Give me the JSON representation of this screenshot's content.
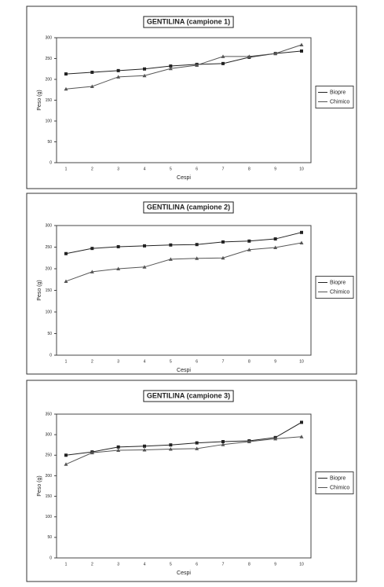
{
  "chart_data": [
    {
      "type": "line",
      "title": "GENTILINA (campione 1)",
      "xlabel": "Cespi",
      "ylabel": "Peso (g)",
      "categories": [
        "1",
        "2",
        "3",
        "4",
        "5",
        "6",
        "7",
        "8",
        "9",
        "10"
      ],
      "ylim": [
        0,
        300
      ],
      "yticks": [
        0,
        50,
        100,
        150,
        200,
        250,
        300
      ],
      "series": [
        {
          "name": "Biopre",
          "color": "#222222",
          "values": [
            213,
            217,
            221,
            225,
            232,
            236,
            238,
            253,
            262,
            268
          ]
        },
        {
          "name": "Chimico",
          "color": "#555555",
          "values": [
            177,
            183,
            206,
            209,
            226,
            234,
            255,
            255,
            262,
            283
          ]
        }
      ]
    },
    {
      "type": "line",
      "title": "GENTILINA (campione 2)",
      "xlabel": "Cespi",
      "ylabel": "Peso (g)",
      "categories": [
        "1",
        "2",
        "3",
        "4",
        "5",
        "6",
        "7",
        "8",
        "9",
        "10"
      ],
      "ylim": [
        0,
        300
      ],
      "yticks": [
        0,
        50,
        100,
        150,
        200,
        250,
        300
      ],
      "series": [
        {
          "name": "Biopre",
          "color": "#222222",
          "values": [
            235,
            247,
            251,
            253,
            255,
            256,
            262,
            264,
            269,
            284
          ]
        },
        {
          "name": "Chimico",
          "color": "#555555",
          "values": [
            171,
            193,
            200,
            204,
            222,
            224,
            225,
            244,
            249,
            260
          ]
        }
      ]
    },
    {
      "type": "line",
      "title": "GENTILINA (campione 3)",
      "xlabel": "Cespi",
      "ylabel": "Peso (g)",
      "categories": [
        "1",
        "2",
        "3",
        "4",
        "5",
        "6",
        "7",
        "8",
        "9",
        "10"
      ],
      "ylim": [
        0,
        350
      ],
      "yticks": [
        0,
        50,
        100,
        150,
        200,
        250,
        300,
        350
      ],
      "series": [
        {
          "name": "Biopre",
          "color": "#222222",
          "values": [
            250,
            258,
            270,
            272,
            275,
            280,
            283,
            285,
            293,
            330
          ]
        },
        {
          "name": "Chimico",
          "color": "#555555",
          "values": [
            228,
            256,
            262,
            263,
            265,
            266,
            276,
            283,
            290,
            295
          ]
        }
      ]
    }
  ]
}
